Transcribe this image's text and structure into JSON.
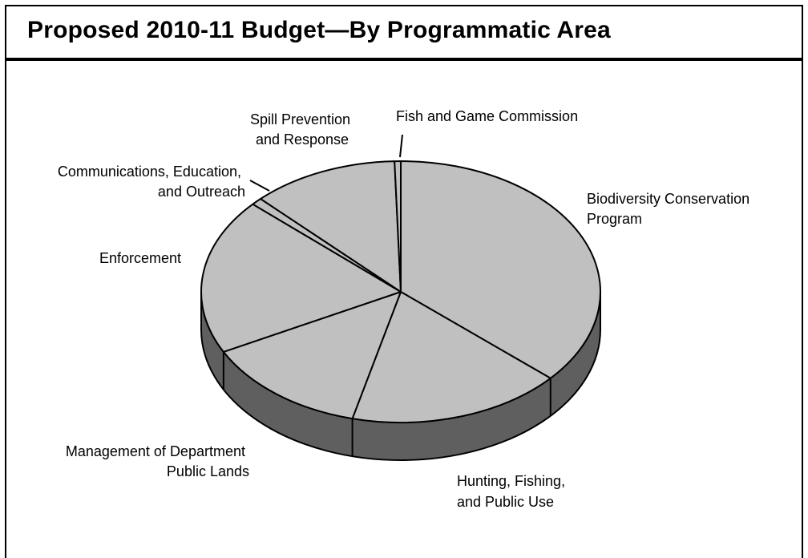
{
  "title": "Proposed 2010-11 Budget—By Programmatic Area",
  "colors": {
    "top_face": "#c0c0c0",
    "side_face": "#5f5f5f",
    "outline": "#000000"
  },
  "chart_data": {
    "type": "pie",
    "title": "Proposed 2010-11 Budget—By Programmatic Area",
    "legend": "none",
    "slices": [
      {
        "label": "Biodiversity Conservation Program",
        "lines": [
          "Biodiversity Conservation",
          "Program"
        ],
        "value": 36.5
      },
      {
        "label": "Hunting, Fishing, and Public Use",
        "lines": [
          "Hunting, Fishing,",
          "and Public Use"
        ],
        "value": 17.4
      },
      {
        "label": "Management of Department Public Lands",
        "lines": [
          "Management of Department",
          "Public Lands"
        ],
        "value": 13.5
      },
      {
        "label": "Enforcement",
        "lines": [
          "Enforcement"
        ],
        "value": 19.3
      },
      {
        "label": "Communications, Education, and Outreach",
        "lines": [
          "Communications, Education,",
          "and Outreach"
        ],
        "value": 0.9
      },
      {
        "label": "Spill Prevention and Response",
        "lines": [
          "Spill Prevention",
          "and Response"
        ],
        "value": 11.9
      },
      {
        "label": "Fish and Game Commission",
        "lines": [
          "Fish and Game Commission"
        ],
        "value": 0.5
      }
    ]
  }
}
